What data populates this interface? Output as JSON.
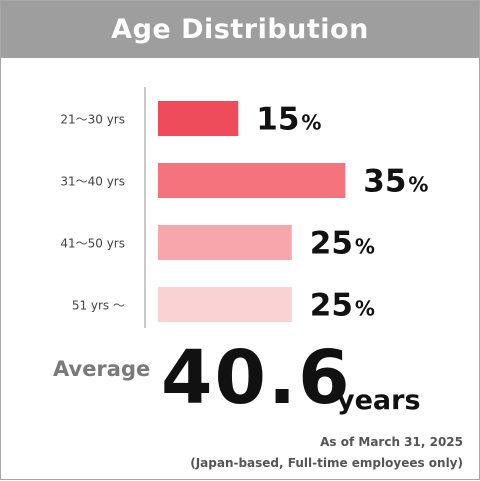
{
  "chart_data": {
    "type": "bar",
    "title": "Age Distribution",
    "orientation": "horizontal",
    "categories": [
      "21～30 yrs",
      "31～40 yrs",
      "41～50 yrs",
      "51 yrs ～"
    ],
    "values": [
      15,
      35,
      25,
      25
    ],
    "value_suffix": "%",
    "colors": [
      "#ee4c5a",
      "#f4737d",
      "#f7a6ab",
      "#fad2d4"
    ]
  },
  "header": {
    "title": "Age Distribution"
  },
  "average": {
    "label": "Average",
    "value": "40.6",
    "unit": "years"
  },
  "notes": {
    "date": "As of March 31, 2025",
    "scope": "(Japan-based, Full-time employees only)"
  },
  "colors": {
    "header_bg": "#9e9e9e",
    "axis": "#b5b5b5"
  }
}
